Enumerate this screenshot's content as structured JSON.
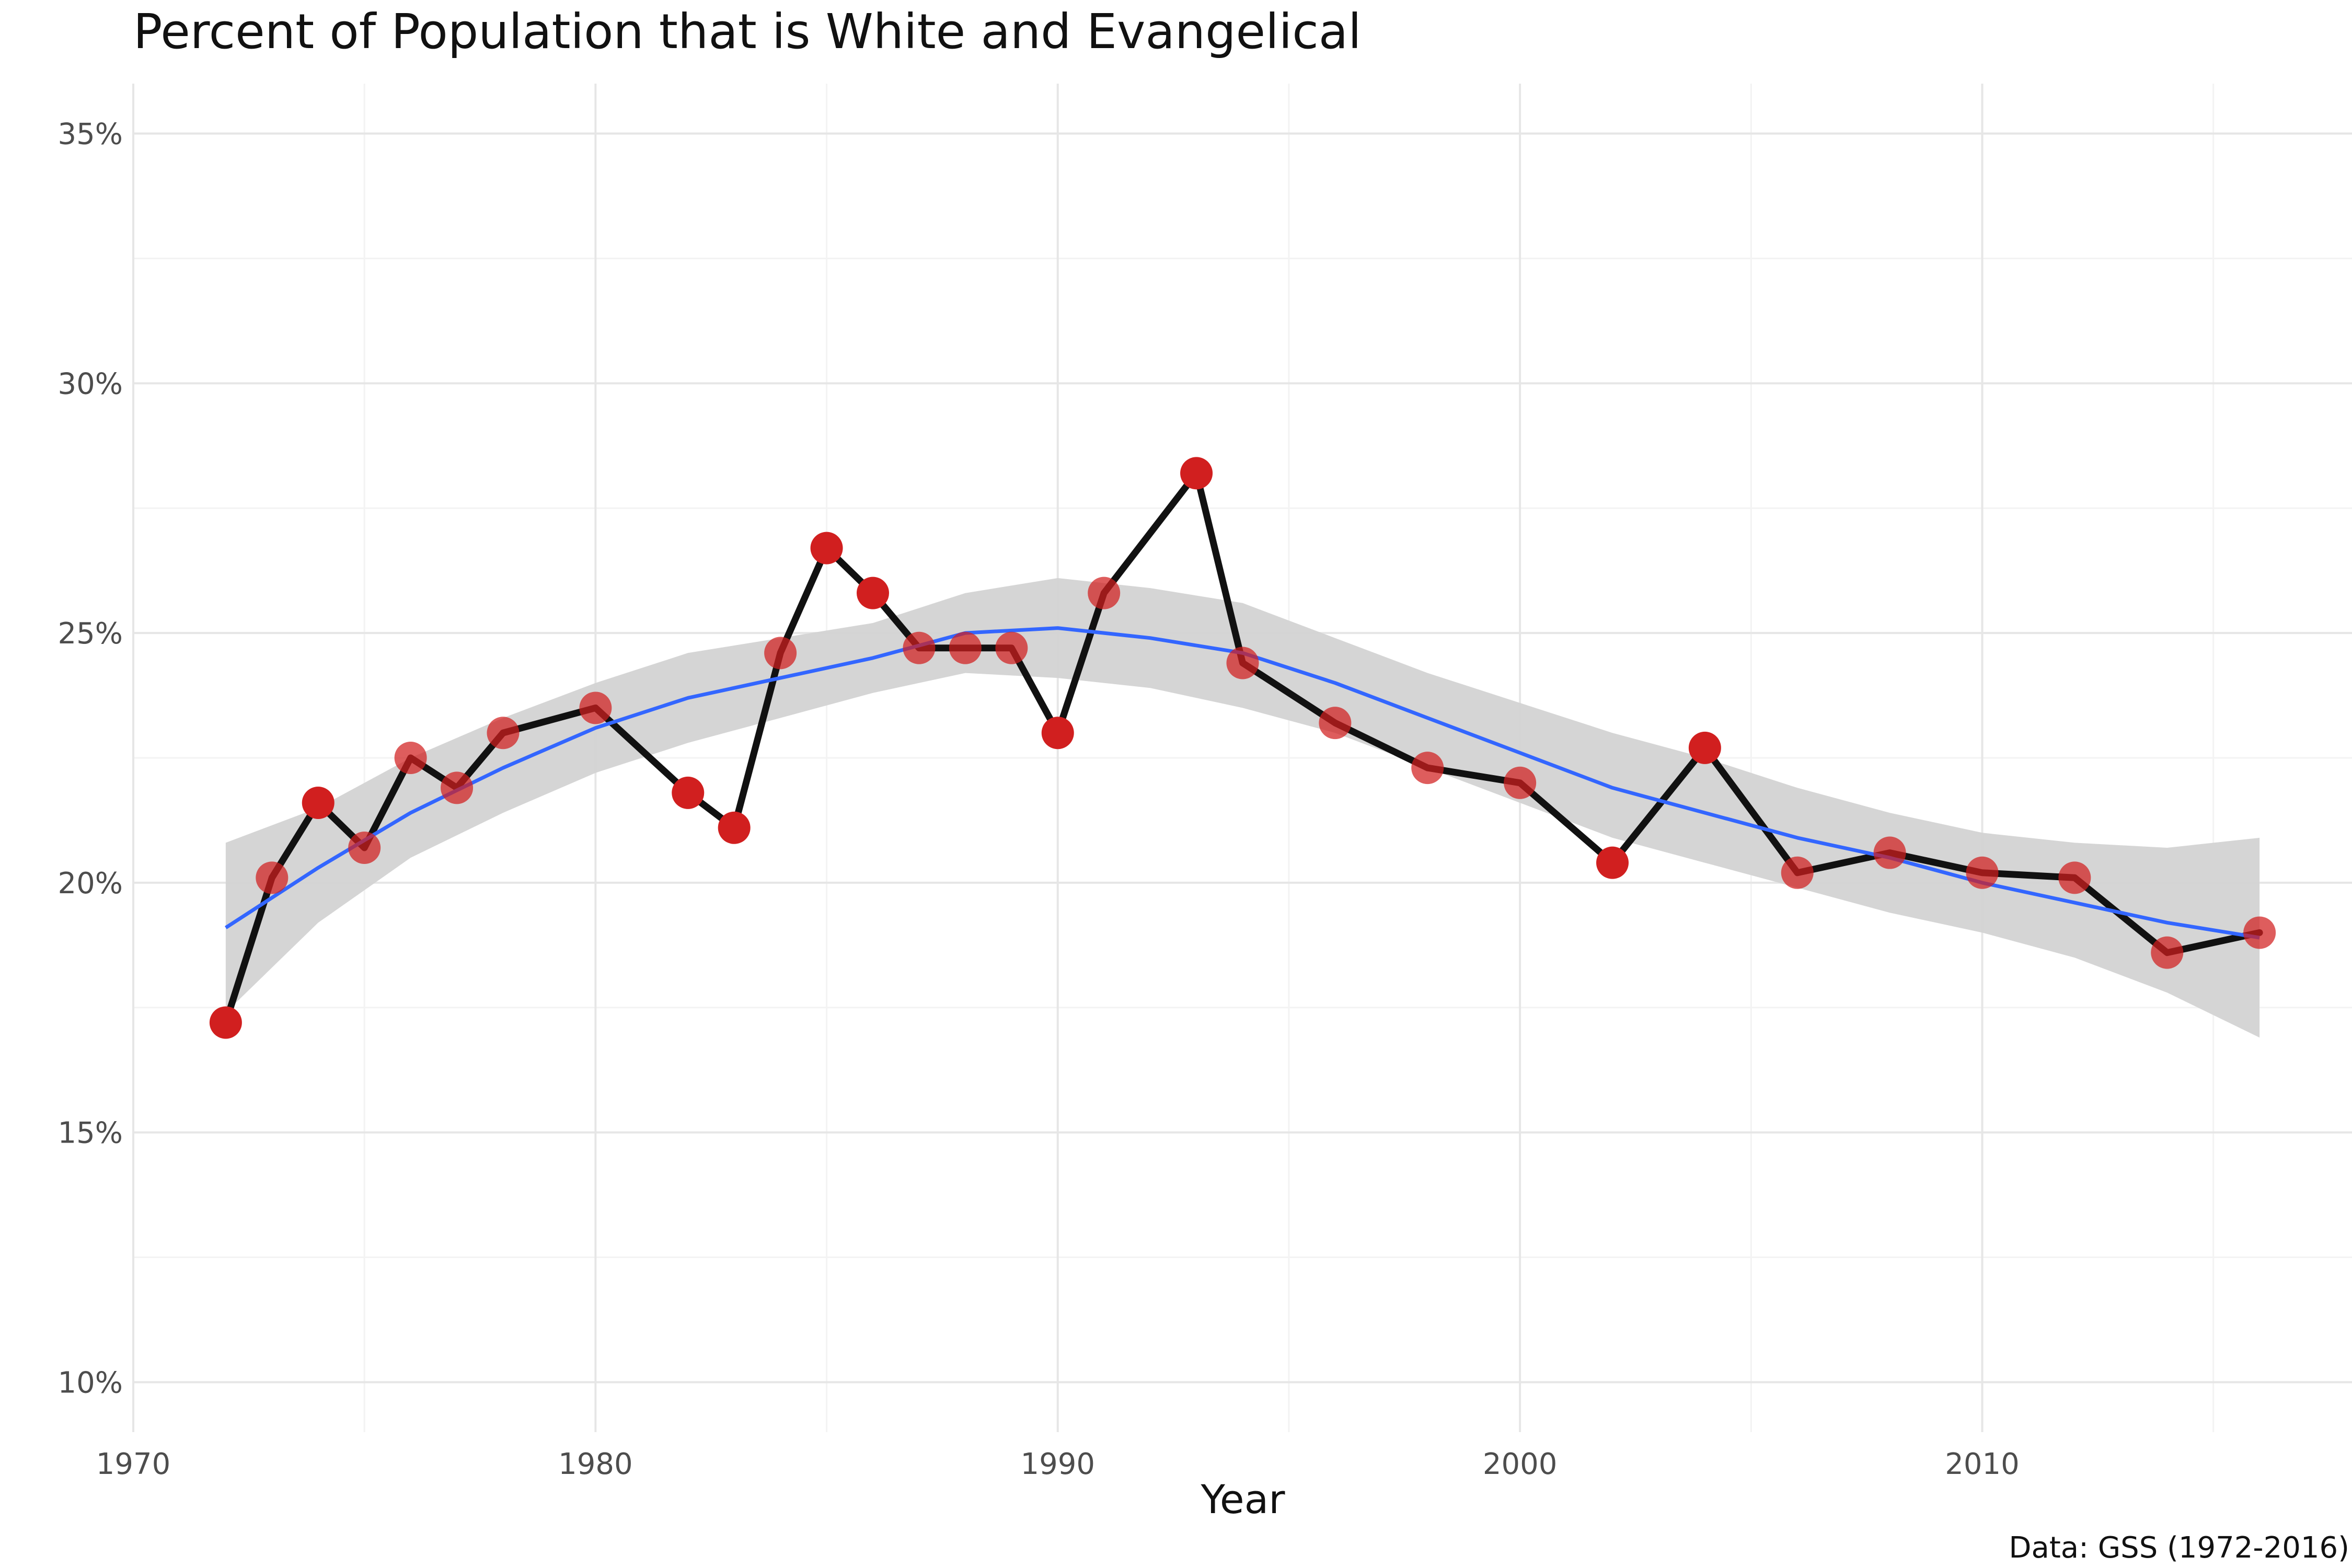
{
  "chart_data": {
    "type": "line",
    "title": "Percent of Population that is White and Evangelical",
    "xlabel": "Year",
    "ylabel": "",
    "caption": "Data: GSS (1972-2016)",
    "xlim": [
      1970,
      2018
    ],
    "ylim": [
      9.0,
      36.0
    ],
    "x_ticks": [
      1970,
      1980,
      1990,
      2000,
      2010
    ],
    "x_tick_labels": [
      "1970",
      "1980",
      "1990",
      "2000",
      "2010"
    ],
    "y_ticks": [
      10,
      15,
      20,
      25,
      30,
      35
    ],
    "y_tick_labels": [
      "10%",
      "15%",
      "20%",
      "25%",
      "30%",
      "35%"
    ],
    "grid": true,
    "legend": "none",
    "series": [
      {
        "x": [
          1972,
          1973,
          1974,
          1975,
          1976,
          1977,
          1978,
          1980,
          1982,
          1983,
          1984,
          1985,
          1986,
          1987,
          1988,
          1989,
          1990,
          1991,
          1993,
          1994,
          1996,
          1998,
          2000,
          2002,
          2004,
          2006,
          2008,
          2010,
          2012,
          2014,
          2016
        ],
        "values": [
          17.2,
          20.1,
          21.6,
          20.7,
          22.5,
          21.9,
          23.0,
          23.5,
          21.8,
          21.1,
          24.6,
          26.7,
          25.8,
          24.7,
          24.7,
          24.7,
          23.0,
          25.8,
          28.2,
          24.4,
          23.2,
          22.3,
          22.0,
          20.4,
          22.7,
          20.2,
          20.6,
          20.2,
          20.1,
          18.6,
          19.0
        ]
      }
    ],
    "smooth": {
      "x": [
        1972,
        1974,
        1976,
        1978,
        1980,
        1982,
        1984,
        1986,
        1988,
        1990,
        1992,
        1994,
        1996,
        1998,
        2000,
        2002,
        2004,
        2006,
        2008,
        2010,
        2012,
        2014,
        2016
      ],
      "values": [
        19.1,
        20.3,
        21.4,
        22.3,
        23.1,
        23.7,
        24.1,
        24.5,
        25.0,
        25.1,
        24.9,
        24.6,
        24.0,
        23.3,
        22.6,
        21.9,
        21.4,
        20.9,
        20.5,
        20.0,
        19.6,
        19.2,
        18.9
      ],
      "ci_lower": [
        17.4,
        19.2,
        20.5,
        21.4,
        22.2,
        22.8,
        23.3,
        23.8,
        24.2,
        24.1,
        23.9,
        23.5,
        23.0,
        22.3,
        21.6,
        20.9,
        20.4,
        19.9,
        19.4,
        19.0,
        18.5,
        17.8,
        16.9
      ],
      "ci_upper": [
        20.8,
        21.5,
        22.5,
        23.3,
        24.0,
        24.6,
        24.9,
        25.2,
        25.8,
        26.1,
        25.9,
        25.6,
        24.9,
        24.2,
        23.6,
        23.0,
        22.5,
        21.9,
        21.4,
        21.0,
        20.8,
        20.7,
        20.9
      ],
      "line_color": "#3366ff",
      "band_color": "#d3d3d3"
    },
    "point_color": "#d11f1f",
    "line_color": "#111111"
  }
}
